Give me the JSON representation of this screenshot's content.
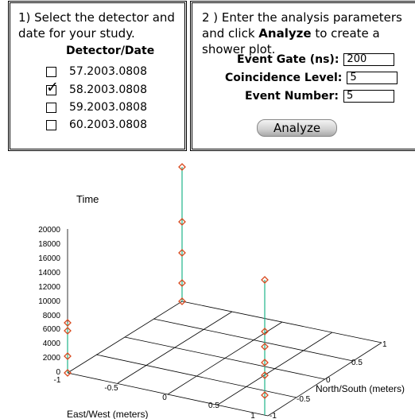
{
  "panel1": {
    "instruction": "1) Select the detector and date for your study.",
    "header": "Detector/Date",
    "detectors": [
      {
        "label": "57.2003.0808",
        "checked": false
      },
      {
        "label": "58.2003.0808",
        "checked": true
      },
      {
        "label": "59.2003.0808",
        "checked": false
      },
      {
        "label": "60.2003.0808",
        "checked": false
      }
    ],
    "check_glyph": "✓"
  },
  "panel2": {
    "instruction_pre": "2 ) Enter the analysis parameters and click",
    "instruction_bold": "Analyze",
    "instruction_post": "to create a shower plot.",
    "params": {
      "gate_label": "Event Gate (ns):",
      "gate_value": "200",
      "coinc_label": "Coincidence Level:",
      "coinc_value": "5",
      "number_label": "Event Number:",
      "number_value": "5"
    },
    "analyze_label": "Analyze"
  },
  "plot": {
    "z_title": "Time",
    "z_ticks": [
      "0",
      "2000",
      "4000",
      "6000",
      "8000",
      "10000",
      "12000",
      "14000",
      "16000",
      "18000",
      "20000"
    ],
    "x_title": "East/West (meters)",
    "y_title": "North/South (meters)",
    "x_ticks": [
      "-1",
      "-0.5",
      "0",
      "0.5",
      "1"
    ],
    "y_ticks": [
      "-1",
      "-0.5",
      "0",
      "0.5",
      "1"
    ],
    "colors": {
      "marker": "#d94a1f",
      "stem": "#1fb38a",
      "grid": "#000000"
    }
  }
}
